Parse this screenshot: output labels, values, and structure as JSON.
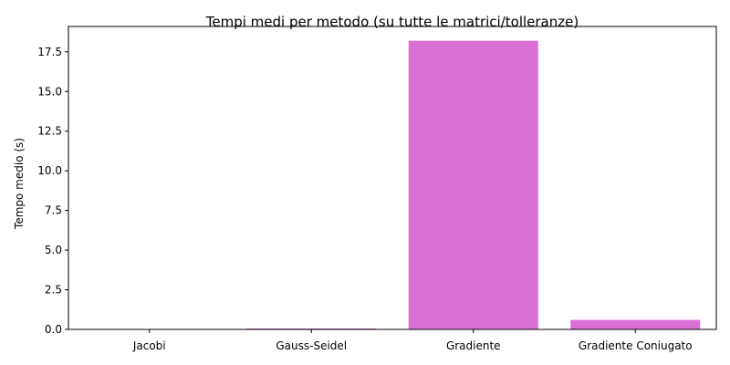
{
  "chart_data": {
    "type": "bar",
    "title": "Tempi medi per metodo (su tutte le matrici/tolleranze)",
    "xlabel": "",
    "ylabel": "Tempo medio (s)",
    "categories": [
      "Jacobi",
      "Gauss-Seidel",
      "Gradiente",
      "Gradiente Coniugato"
    ],
    "values": [
      0.02,
      0.06,
      18.2,
      0.6
    ],
    "ylim": [
      0,
      19.1
    ],
    "yticks": [
      0.0,
      2.5,
      5.0,
      7.5,
      10.0,
      12.5,
      15.0,
      17.5
    ],
    "ytick_labels": [
      "0.0",
      "2.5",
      "5.0",
      "7.5",
      "10.0",
      "12.5",
      "15.0",
      "17.5"
    ],
    "bar_color": "#da70d6",
    "grid": false,
    "legend": "none"
  }
}
